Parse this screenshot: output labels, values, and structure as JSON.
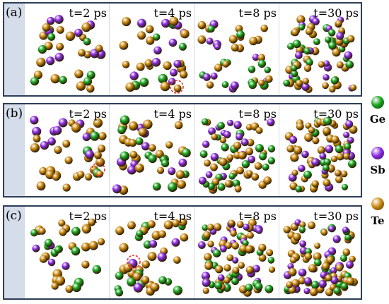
{
  "rows": [
    {
      "label": "(a)",
      "times": [
        "t=2 ps",
        "t=4 ps",
        "t=8 ps",
        "t=30 ps"
      ]
    },
    {
      "label": "(b)",
      "times": [
        "t=2 ps",
        "t=4 ps",
        "t=8 ps",
        "t=30 ps"
      ]
    },
    {
      "label": "(c)",
      "times": [
        "t=2 ps",
        "t=4 ps",
        "t=8 ps",
        "t=30 ps"
      ]
    }
  ],
  "legend": [
    {
      "label": "Ge",
      "color": "#1aa51f"
    },
    {
      "label": "Sb",
      "color": "#8b2be2"
    },
    {
      "label": "Te",
      "color": "#cc8a10"
    }
  ],
  "highlight_color": "#e0302a"
}
